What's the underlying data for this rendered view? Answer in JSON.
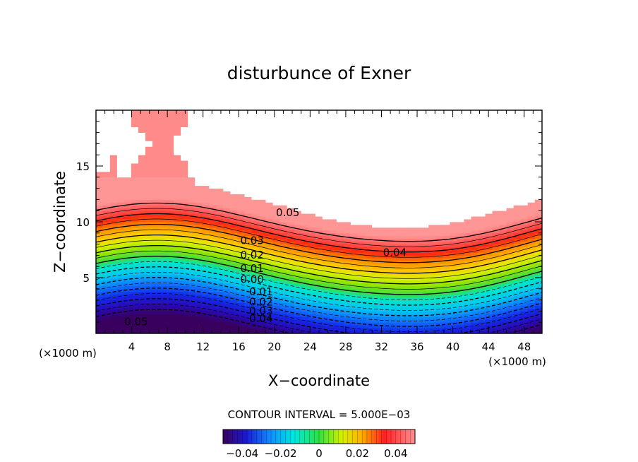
{
  "chart_data": {
    "type": "heatmap",
    "subtype": "filled-contour",
    "title": "disturbunce of Exner",
    "xlabel": "X−coordinate",
    "ylabel": "Z−coordinate",
    "x_unit_left": "(×1000 m)",
    "x_unit_right": "(×1000 m)",
    "xlim": [
      0,
      50
    ],
    "ylim": [
      0,
      20
    ],
    "xticks": [
      4,
      8,
      12,
      16,
      20,
      24,
      28,
      32,
      36,
      40,
      44,
      48
    ],
    "yticks": [
      5,
      10,
      15
    ],
    "contour_interval_text": "CONTOUR INTERVAL = 5.000E−03",
    "contour_interval": 0.005,
    "colorbar": {
      "range": [
        -0.05,
        0.05
      ],
      "ticks": [
        -0.04,
        -0.02,
        0,
        0.02,
        0.04
      ],
      "tick_labels": [
        "−0.04",
        "−0.02",
        "0",
        "0.02",
        "0.04"
      ],
      "colormap": "rainbow"
    },
    "contour_labels": [
      {
        "text": "0.05",
        "x": 21.5,
        "z": 10.8
      },
      {
        "text": "0.04",
        "x": 33.5,
        "z": 7.2
      },
      {
        "text": "0.03",
        "x": 17.5,
        "z": 8.3
      },
      {
        "text": "0.02",
        "x": 17.5,
        "z": 7.0
      },
      {
        "text": "0.01",
        "x": 17.5,
        "z": 5.8
      },
      {
        "text": "0.00",
        "x": 17.5,
        "z": 4.8
      },
      {
        "text": "0.01",
        "x": 18.5,
        "z": 3.7
      },
      {
        "text": "0.02",
        "x": 18.5,
        "z": 2.8
      },
      {
        "text": "0.03",
        "x": 18.5,
        "z": 2.0
      },
      {
        "text": "0.04",
        "x": 18.5,
        "z": 1.3
      },
      {
        "text": "0.05",
        "x": 4.5,
        "z": 1.0
      }
    ],
    "grid": false,
    "legend": "none"
  }
}
